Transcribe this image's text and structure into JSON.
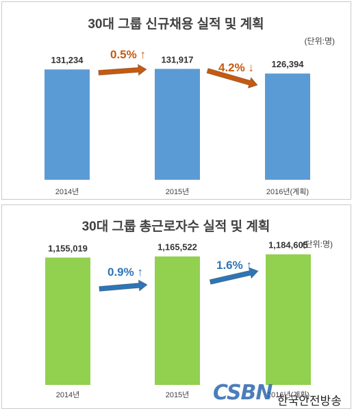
{
  "chart_data": [
    {
      "type": "bar",
      "title": "30대 그룹 신규채용 실적 및 계획",
      "unit": "(단위:명)",
      "categories": [
        "2014년",
        "2015년",
        "2016년(계획)"
      ],
      "values": [
        131234,
        131917,
        126394
      ],
      "value_labels": [
        "131,234",
        "131,917",
        "126,394"
      ],
      "changes": [
        {
          "label": "0.5%",
          "direction": "up",
          "color": "#c55a11"
        },
        {
          "label": "4.2%",
          "direction": "down",
          "color": "#c55a11"
        }
      ],
      "bar_color": "#5b9bd5",
      "ylim": [
        0,
        160000
      ],
      "grid": false
    },
    {
      "type": "bar",
      "title": "30대 그룹 총근로자수 실적 및 계획",
      "unit": "(단위:명)",
      "categories": [
        "2014년",
        "2015년",
        "2016년(계획)"
      ],
      "values": [
        1155019,
        1165522,
        1184605
      ],
      "value_labels": [
        "1,155,019",
        "1,165,522",
        "1,184,605"
      ],
      "changes": [
        {
          "label": "0.9%",
          "direction": "up",
          "color": "#2e75b6"
        },
        {
          "label": "1.6%",
          "direction": "up",
          "color": "#2e75b6"
        }
      ],
      "bar_color": "#92d050",
      "ylim": [
        0,
        1450000
      ],
      "grid": false
    }
  ],
  "watermark": {
    "logo": "CSBN",
    "text": "한국안전방송"
  }
}
